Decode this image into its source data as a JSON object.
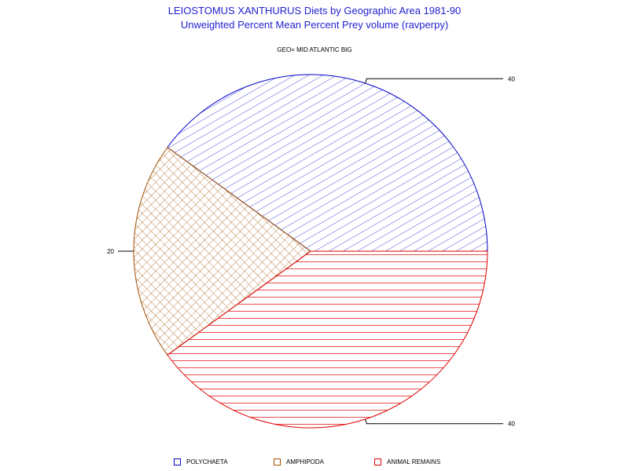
{
  "header": {
    "title": "LEIOSTOMUS XANTHURUS Diets by Geographic Area 1981-90",
    "subtitle": "Unweighted Percent Mean Percent Prey  volume (ravperpy)",
    "geo_label": "GEO= MID ATLANTIC BIG"
  },
  "chart_data": {
    "type": "pie",
    "title": "LEIOSTOMUS XANTHURUS Diets by Geographic Area 1981-90",
    "subtitle": "Unweighted Percent Mean Percent Prey  volume (ravperpy)",
    "group_label": "GEO= MID ATLANTIC BIG",
    "slices": [
      {
        "name": "POLYCHAETA",
        "value": 40,
        "color": "#0000c8",
        "pattern": "diagonal-hatch"
      },
      {
        "name": "AMPHIPODA",
        "value": 20,
        "color": "#a05000",
        "pattern": "cross-hatch"
      },
      {
        "name": "ANIMAL REMAINS",
        "value": 40,
        "color": "#e00000",
        "pattern": "horizontal-lines"
      }
    ],
    "slice_labels": [
      "40",
      "20",
      "40"
    ],
    "legend_position": "bottom"
  }
}
